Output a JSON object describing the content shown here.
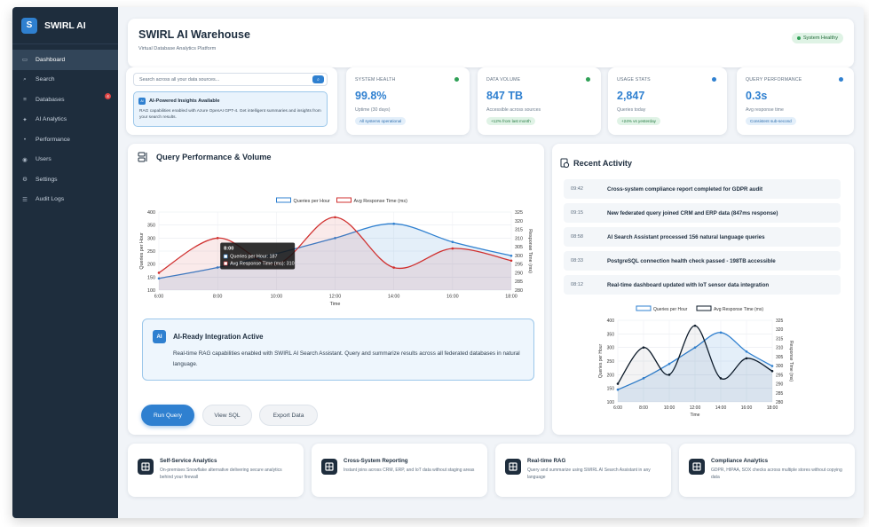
{
  "app": {
    "logo_letter": "S",
    "name": "SWIRL AI"
  },
  "sidebar": {
    "items": [
      {
        "label": "Dashboard",
        "icon": "dashboard-icon",
        "glyph": "▭",
        "active": true
      },
      {
        "label": "Search",
        "icon": "search-icon",
        "glyph": "⌕"
      },
      {
        "label": "Databases",
        "icon": "database-icon",
        "glyph": "≡",
        "badge": "4"
      },
      {
        "label": "AI Analytics",
        "icon": "chip-icon",
        "glyph": "✦"
      },
      {
        "label": "Performance",
        "icon": "bolt-icon",
        "glyph": "•"
      },
      {
        "label": "Users",
        "icon": "users-icon",
        "glyph": "◉"
      },
      {
        "label": "Settings",
        "icon": "gear-icon",
        "glyph": "⚙"
      },
      {
        "label": "Audit Logs",
        "icon": "log-icon",
        "glyph": "☰"
      }
    ]
  },
  "header": {
    "title": "SWIRL AI Warehouse",
    "subtitle": "Virtual Database Analytics Platform",
    "status": "System Healthy"
  },
  "search": {
    "placeholder": "Search across all your data sources...",
    "button": "⌕"
  },
  "ai_notice": {
    "badge": "AI",
    "title": "AI-Powered Insights Available",
    "desc": "RAG capabilities enabled with Azure OpenAI GPT-4. Get intelligent summaries and insights from your search results."
  },
  "stats": [
    {
      "label": "SYSTEM HEALTH",
      "value": "99.8%",
      "sub": "Uptime (30 days)",
      "tag": "All systems operational",
      "dot_color": "#2fa056",
      "tag_style": "blue"
    },
    {
      "label": "DATA VOLUME",
      "value": "847 TB",
      "sub": "Accessible across sources",
      "tag": "+12% from last month",
      "dot_color": "#2fa056",
      "tag_style": "green"
    },
    {
      "label": "USAGE STATS",
      "value": "2,847",
      "sub": "Queries today",
      "tag": "+24% vs yesterday",
      "dot_color": "#2f80d0",
      "tag_style": "green"
    },
    {
      "label": "QUERY PERFORMANCE",
      "value": "0.3s",
      "sub": "Avg response time",
      "tag": "Consistent sub-second",
      "dot_color": "#2f80d0",
      "tag_style": "blue"
    }
  ],
  "query_panel": {
    "title": "Query Performance & Volume",
    "tooltip": {
      "title": "8:00",
      "line1": "Queries per Hour: 187",
      "line2": "Avg Response Time (ms): 310"
    },
    "integration": {
      "badge": "AI",
      "title": "AI-Ready Integration Active",
      "desc": "Real-time RAG capabilities enabled with SWIRL AI Search Assistant. Query and summarize results across all federated databases in natural language."
    },
    "buttons": {
      "run": "Run Query",
      "view": "View SQL",
      "export": "Export Data"
    }
  },
  "activity": {
    "title": "Recent Activity",
    "items": [
      {
        "time": "09:42",
        "text": "Cross-system compliance report completed for GDPR audit"
      },
      {
        "time": "09:15",
        "text": "New federated query joined CRM and ERP data (847ms response)"
      },
      {
        "time": "08:58",
        "text": "AI Search Assistant processed 156 natural language queries"
      },
      {
        "time": "08:33",
        "text": "PostgreSQL connection health check passed - 198TB accessible"
      },
      {
        "time": "08:12",
        "text": "Real-time dashboard updated with IoT sensor data integration"
      }
    ]
  },
  "chart_data": [
    {
      "type": "line",
      "x": [
        "6:00",
        "8:00",
        "10:00",
        "12:00",
        "14:00",
        "16:00",
        "18:00"
      ],
      "xlabel": "Time",
      "ylabel": "Queries per Hour",
      "y2label": "Response Time (ms)",
      "ylim": [
        100,
        400
      ],
      "y2lim": [
        280,
        325
      ],
      "yticks": [
        100,
        150,
        200,
        250,
        300,
        350,
        400
      ],
      "y2ticks": [
        280,
        285,
        290,
        295,
        300,
        305,
        310,
        315,
        320,
        325
      ],
      "legend": "top",
      "grid": true,
      "series": [
        {
          "name": "Queries per Hour",
          "axis": "left",
          "color": "#2f80d0",
          "values": [
            145,
            187,
            240,
            300,
            355,
            285,
            232
          ]
        },
        {
          "name": "Avg Response Time (ms)",
          "axis": "right",
          "color": "#d0302f",
          "values": [
            290,
            310,
            295,
            322,
            293,
            304,
            297
          ]
        }
      ]
    },
    {
      "type": "line",
      "x": [
        "6:00",
        "8:00",
        "10:00",
        "12:00",
        "14:00",
        "16:00",
        "18:00"
      ],
      "xlabel": "Time",
      "ylabel": "Queries per Hour",
      "y2label": "Response Time (ms)",
      "ylim": [
        100,
        400
      ],
      "y2lim": [
        280,
        325
      ],
      "yticks": [
        100,
        150,
        200,
        250,
        300,
        350,
        400
      ],
      "y2ticks": [
        280,
        285,
        290,
        295,
        300,
        305,
        310,
        315,
        320,
        325
      ],
      "legend": "top",
      "grid": true,
      "series": [
        {
          "name": "Queries per Hour",
          "axis": "left",
          "color": "#2f80d0",
          "values": [
            145,
            187,
            240,
            300,
            355,
            285,
            232
          ]
        },
        {
          "name": "Avg Response Time (ms)",
          "axis": "right",
          "color": "#0d1b2a",
          "values": [
            290,
            310,
            295,
            322,
            293,
            304,
            297
          ]
        }
      ]
    }
  ],
  "features": [
    {
      "title": "Self-Service Analytics",
      "desc": "On-premises Snowflake alternative delivering secure analytics behind your firewall",
      "icon": "analytics-icon"
    },
    {
      "title": "Cross-System Reporting",
      "desc": "Instant joins across CRM, ERP, and IoT data without staging areas",
      "icon": "grid-icon"
    },
    {
      "title": "Real-time RAG",
      "desc": "Query and summarize using SWIRL AI Search Assistant in any language",
      "icon": "ai-report-icon"
    },
    {
      "title": "Compliance Analytics",
      "desc": "GDPR, HIPAA, SOX checks across multiple stores without copying data",
      "icon": "shield-search-icon"
    }
  ]
}
